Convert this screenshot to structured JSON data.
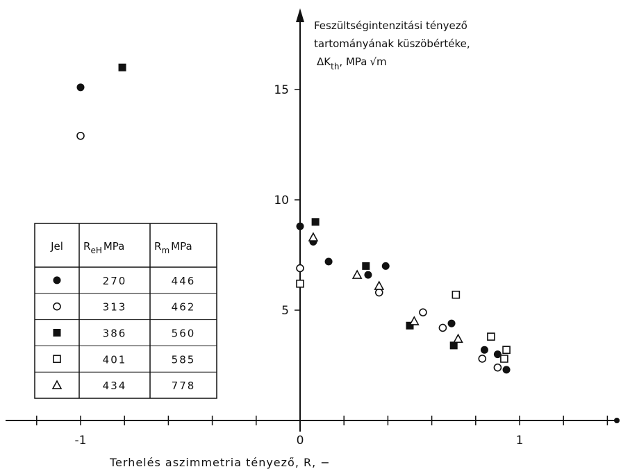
{
  "chart_data": {
    "type": "scatter",
    "title_lines": [
      "Feszültségintenzitási tényező",
      "tartományának küszöbértéke,",
      "ΔK",
      "th",
      ", MPa",
      "√m"
    ],
    "xlabel": "Terhelés aszimmetria tényező, R, −",
    "xlim": [
      -1.35,
      1.45
    ],
    "ylim": [
      0,
      19.5
    ],
    "x_ticks": [
      -1,
      0,
      1
    ],
    "y_ticks": [
      5,
      10,
      15
    ],
    "grid": false,
    "legend": {
      "placement": "left",
      "headers": [
        "Jel",
        "R",
        "eH",
        "MPa",
        "R",
        "m",
        "MPa"
      ],
      "rows": [
        {
          "marker": "filled-circle",
          "ReH": "270",
          "Rm": "446"
        },
        {
          "marker": "open-circle",
          "ReH": "313",
          "Rm": "462"
        },
        {
          "marker": "filled-square",
          "ReH": "386",
          "Rm": "560"
        },
        {
          "marker": "open-square",
          "ReH": "401",
          "Rm": "585"
        },
        {
          "marker": "open-triangle",
          "ReH": "434",
          "Rm": "778"
        }
      ]
    },
    "series": [
      {
        "marker": "filled-circle",
        "ReH": "270",
        "points": [
          [
            -1.0,
            15.1
          ],
          [
            0.0,
            8.8
          ],
          [
            0.06,
            8.1
          ],
          [
            0.13,
            7.2
          ],
          [
            0.31,
            6.6
          ],
          [
            0.39,
            7.0
          ],
          [
            0.69,
            4.4
          ],
          [
            0.84,
            3.2
          ],
          [
            0.9,
            3.0
          ],
          [
            0.94,
            2.3
          ]
        ]
      },
      {
        "marker": "open-circle",
        "ReH": "313",
        "points": [
          [
            -1.0,
            12.9
          ],
          [
            0.0,
            6.9
          ],
          [
            0.36,
            5.8
          ],
          [
            0.56,
            4.9
          ],
          [
            0.65,
            4.2
          ],
          [
            0.83,
            2.8
          ],
          [
            0.9,
            2.4
          ]
        ]
      },
      {
        "marker": "filled-square",
        "ReH": "386",
        "points": [
          [
            -0.81,
            16.0
          ],
          [
            0.07,
            9.0
          ],
          [
            0.3,
            7.0
          ],
          [
            0.5,
            4.3
          ],
          [
            0.7,
            3.4
          ]
        ]
      },
      {
        "marker": "open-square",
        "ReH": "401",
        "points": [
          [
            0.0,
            6.2
          ],
          [
            0.71,
            5.7
          ],
          [
            0.87,
            3.8
          ],
          [
            0.93,
            2.8
          ],
          [
            0.94,
            3.2
          ]
        ]
      },
      {
        "marker": "open-triangle",
        "ReH": "434",
        "points": [
          [
            0.06,
            8.3
          ],
          [
            0.26,
            6.6
          ],
          [
            0.36,
            6.1
          ],
          [
            0.52,
            4.5
          ],
          [
            0.72,
            3.7
          ]
        ]
      }
    ]
  }
}
